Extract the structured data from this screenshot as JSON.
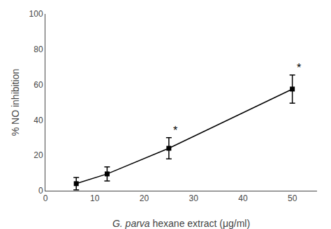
{
  "chart_data": {
    "type": "line",
    "xlabel": "G. parva hexane extract (μg/ml)",
    "ylabel": "% NO inhibition",
    "x": [
      6.25,
      12.5,
      25,
      50
    ],
    "values": [
      4.0,
      9.5,
      24.0,
      57.5
    ],
    "yerr": [
      3.5,
      4.0,
      6.0,
      8.0
    ],
    "color": "#000000",
    "marker": "square",
    "line_style": "solid",
    "xlim": [
      0,
      55
    ],
    "ylim": [
      0,
      100
    ],
    "xticks": [
      0,
      10,
      20,
      30,
      40,
      50
    ],
    "yticks": [
      0,
      20,
      40,
      60,
      80,
      100
    ],
    "grid": false,
    "annotations": [
      {
        "x": 25,
        "text": "*"
      },
      {
        "x": 50,
        "text": "*"
      }
    ]
  }
}
